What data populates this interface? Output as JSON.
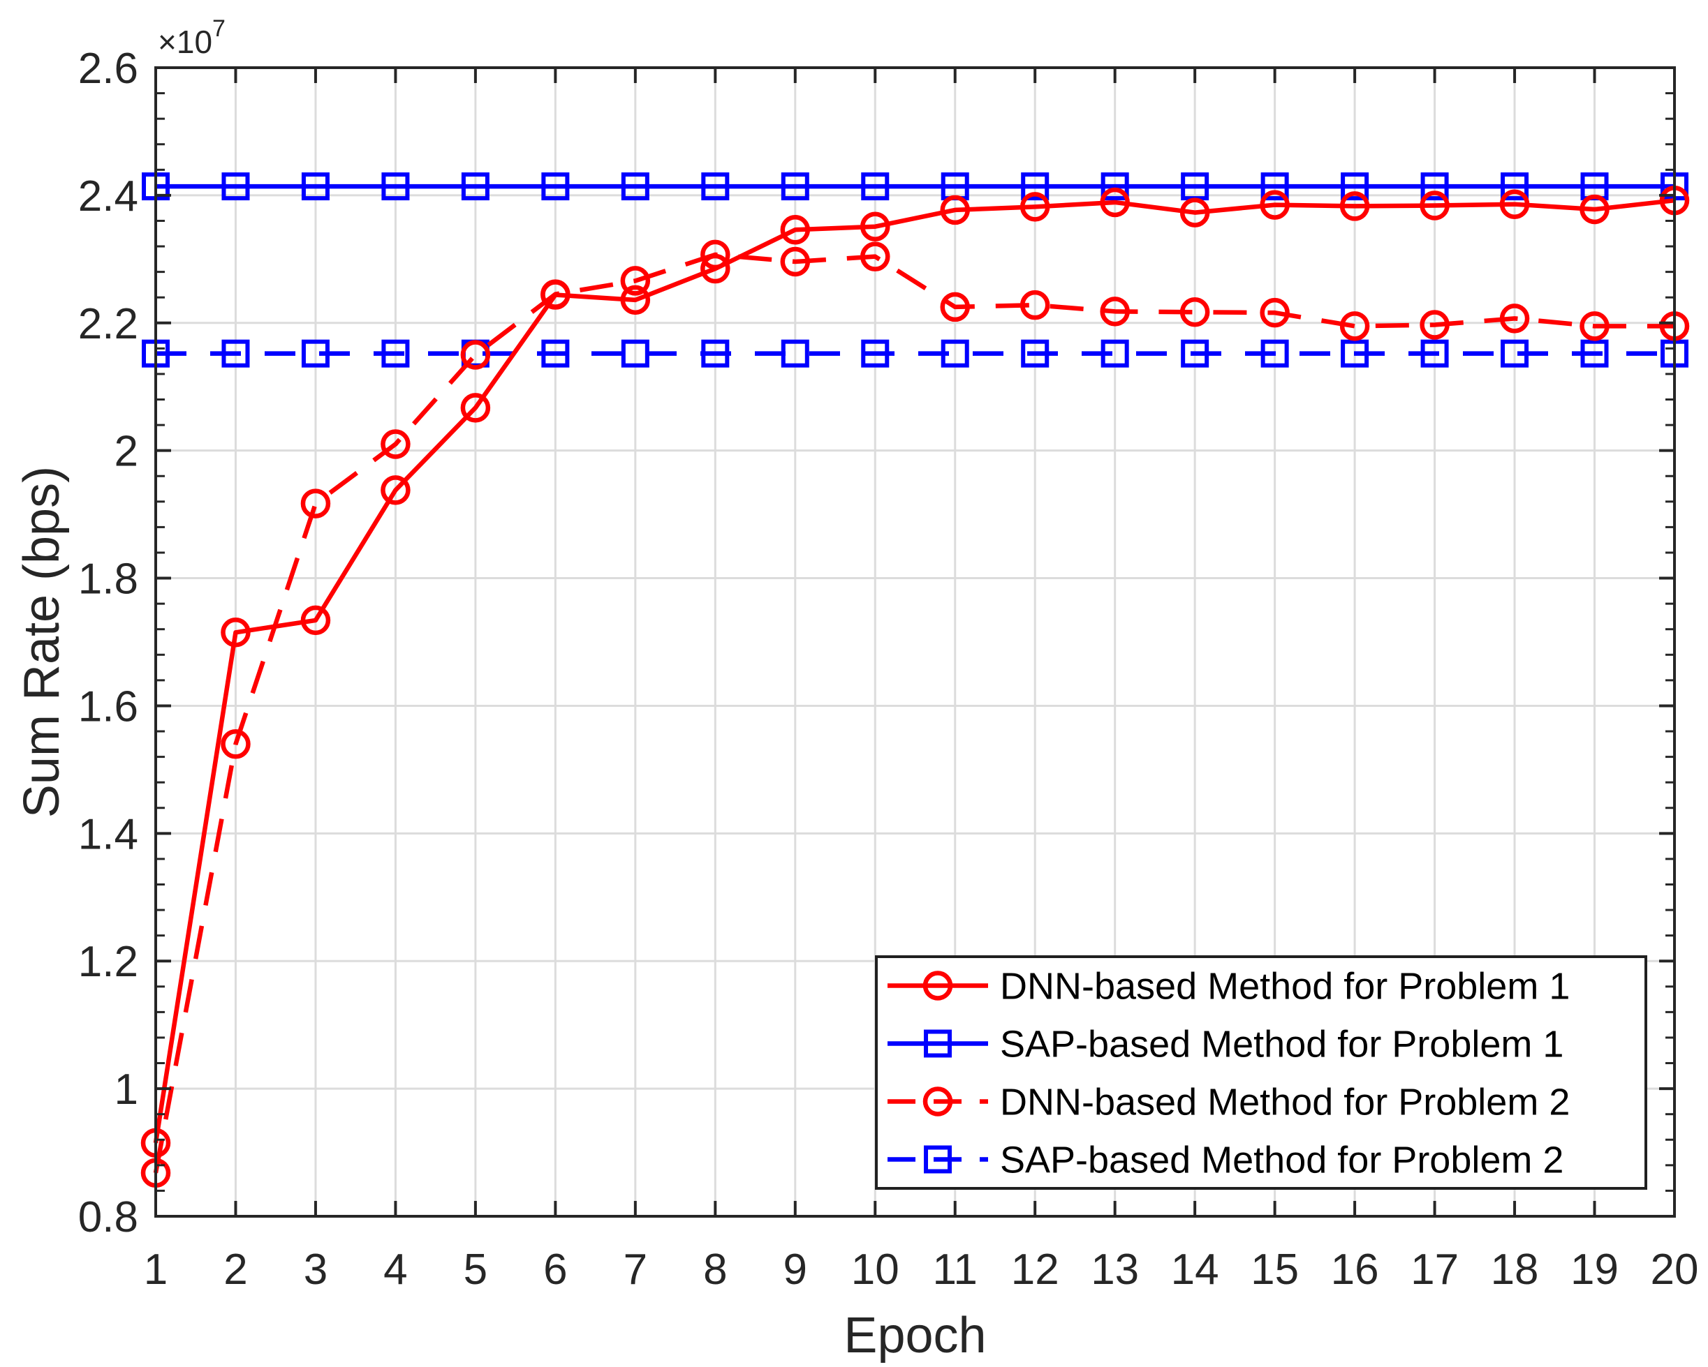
{
  "figure": {
    "xlabel": "Epoch",
    "ylabel": "Sum Rate (bps)",
    "y_multiplier_base": "×10",
    "y_multiplier_exponent": "7"
  },
  "colors": {
    "red_series": "#FF0000",
    "blue_series": "#0000FF",
    "axis": "#262626",
    "grid": "#DCDCDC",
    "legend_border": "#202020",
    "background": "#FFFFFF"
  },
  "chart_data": {
    "type": "line",
    "title": "",
    "xlabel": "Epoch",
    "ylabel": "Sum Rate (bps)",
    "x_axis": {
      "min": 1,
      "max": 20,
      "tick_step": 1,
      "tick_labels": [
        "1",
        "2",
        "3",
        "4",
        "5",
        "6",
        "7",
        "8",
        "9",
        "10",
        "11",
        "12",
        "13",
        "14",
        "15",
        "16",
        "17",
        "18",
        "19",
        "20"
      ]
    },
    "y_axis": {
      "min": 0.8,
      "max": 2.6,
      "major_step": 0.2,
      "minor_step": 0.04,
      "unit_multiplier": 10000000,
      "multiplier_label": "×10^7",
      "tick_labels": [
        "0.8",
        "1",
        "1.2",
        "1.4",
        "1.6",
        "1.8",
        "2",
        "2.2",
        "2.4",
        "2.6"
      ]
    },
    "grid": "major-on",
    "legend_position": "lower-right-inside",
    "x": [
      1,
      2,
      3,
      4,
      5,
      6,
      7,
      8,
      9,
      10,
      11,
      12,
      13,
      14,
      15,
      16,
      17,
      18,
      19,
      20
    ],
    "series": [
      {
        "name": "DNN-based Method for Problem 1",
        "color": "#FF0000",
        "style": "solid",
        "marker": "circle",
        "values_e7": [
          0.915,
          1.715,
          1.734,
          1.938,
          2.067,
          2.244,
          2.236,
          2.285,
          2.346,
          2.351,
          2.377,
          2.382,
          2.389,
          2.373,
          2.385,
          2.383,
          2.384,
          2.386,
          2.378,
          2.392
        ]
      },
      {
        "name": "SAP-based Method for Problem 1",
        "color": "#0000FF",
        "style": "solid",
        "marker": "square",
        "values_e7": [
          2.414,
          2.414,
          2.414,
          2.414,
          2.414,
          2.414,
          2.414,
          2.414,
          2.414,
          2.414,
          2.414,
          2.414,
          2.414,
          2.414,
          2.414,
          2.414,
          2.414,
          2.414,
          2.414,
          2.414
        ]
      },
      {
        "name": "DNN-based Method for Problem 2",
        "color": "#FF0000",
        "style": "dashed",
        "marker": "circle",
        "values_e7": [
          0.868,
          1.54,
          1.917,
          2.01,
          2.15,
          2.245,
          2.266,
          2.307,
          2.296,
          2.304,
          2.225,
          2.228,
          2.218,
          2.217,
          2.216,
          2.195,
          2.197,
          2.207,
          2.195,
          2.195
        ]
      },
      {
        "name": "SAP-based Method for Problem 2",
        "color": "#0000FF",
        "style": "dashed",
        "marker": "square",
        "values_e7": [
          2.152,
          2.152,
          2.152,
          2.152,
          2.152,
          2.152,
          2.152,
          2.152,
          2.152,
          2.152,
          2.152,
          2.152,
          2.152,
          2.152,
          2.152,
          2.152,
          2.152,
          2.152,
          2.152,
          2.152
        ]
      }
    ],
    "legend_entries": [
      "DNN-based Method for Problem 1",
      "SAP-based Method for Problem 1",
      "DNN-based Method for Problem 2",
      "SAP-based Method for Problem 2"
    ]
  }
}
